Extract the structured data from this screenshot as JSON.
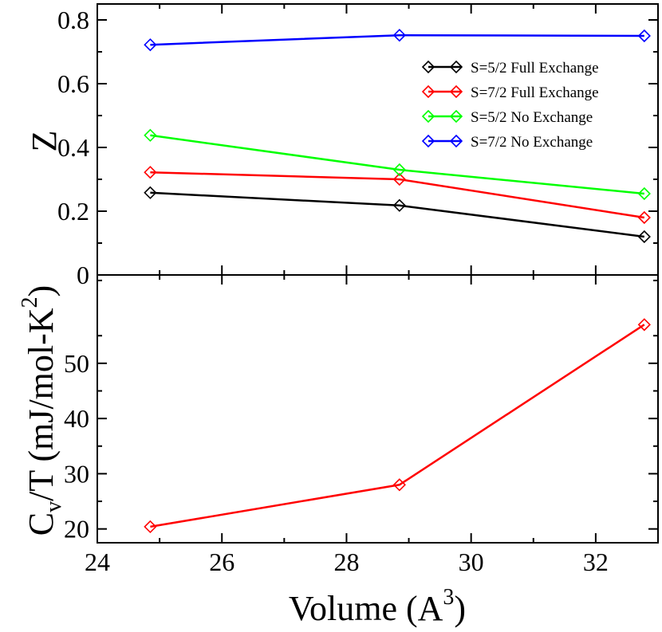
{
  "chart_data": [
    {
      "type": "line",
      "panel": "top",
      "title": "",
      "xlabel": "",
      "ylabel": "Z",
      "xlim": [
        24,
        33
      ],
      "ylim": [
        0,
        0.85
      ],
      "x_ticks": [
        "24",
        "26",
        "28",
        "30",
        "32"
      ],
      "y_ticks": [
        "0",
        "0.2",
        "0.4",
        "0.6",
        "0.8"
      ],
      "grid": false,
      "legend_position": "top-right",
      "x": [
        24.85,
        28.85,
        32.78
      ],
      "series": [
        {
          "name": "S=5/2 Full Exchange",
          "color": "#000000",
          "values": [
            0.258,
            0.218,
            0.12
          ]
        },
        {
          "name": "S=7/2 Full Exchange",
          "color": "#ff0000",
          "values": [
            0.322,
            0.3,
            0.18
          ]
        },
        {
          "name": "S=5/2 No Exchange",
          "color": "#00ff00",
          "values": [
            0.438,
            0.33,
            0.255
          ]
        },
        {
          "name": "S=7/2 No Exchange",
          "color": "#0000ff",
          "values": [
            0.722,
            0.752,
            0.75
          ]
        }
      ]
    },
    {
      "type": "line",
      "panel": "bottom",
      "title": "",
      "xlabel_main": "Volume (A",
      "xlabel_sup": "3",
      "xlabel_close": ")",
      "ylabel_c": "C",
      "ylabel_sub": "v",
      "ylabel_mid": "/T (mJ/mol-K",
      "ylabel_sup": "2",
      "ylabel_close": ")",
      "xlim": [
        24,
        33
      ],
      "ylim": [
        17.5,
        66
      ],
      "x_ticks": [
        "24",
        "26",
        "28",
        "30",
        "32"
      ],
      "y_ticks": [
        "20",
        "30",
        "40",
        "50"
      ],
      "grid": false,
      "x": [
        24.85,
        28.85,
        32.78
      ],
      "series": [
        {
          "name": "Cv/T",
          "color": "#ff0000",
          "values": [
            20.4,
            28.0,
            57.0
          ]
        }
      ]
    }
  ]
}
